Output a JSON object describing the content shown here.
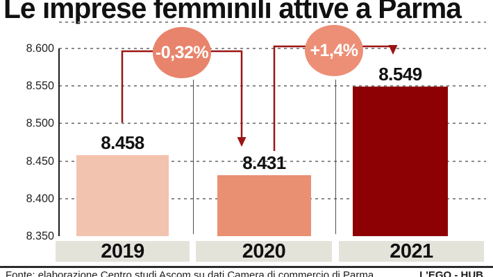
{
  "title": "Le imprese femminili attive a Parma",
  "chart_data": {
    "type": "bar",
    "title": "Le imprese femminili attive a Parma",
    "categories": [
      "2019",
      "2020",
      "2021"
    ],
    "values": [
      8458,
      8431,
      8549
    ],
    "value_labels": [
      "8.458",
      "8.431",
      "8.549"
    ],
    "ylim": [
      8350,
      8600
    ],
    "y_ticks": [
      8600,
      8550,
      8500,
      8450,
      8400,
      8350
    ],
    "y_tick_labels": [
      "8.600",
      "8.550",
      "8.500",
      "8.450",
      "8.400",
      "8.350"
    ],
    "grid": true,
    "legend": "none",
    "bar_colors": [
      "#f2c3ae",
      "#e98f72",
      "#8d0104"
    ],
    "annotations": [
      {
        "label": "-0,32%",
        "from": "2019",
        "to": "2020",
        "color": "#e8846c"
      },
      {
        "label": "+1,4%",
        "from": "2020",
        "to": "2021",
        "color": "#ec8f76"
      }
    ]
  },
  "colors": {
    "arrow": "#9b1414",
    "gridline": "#8a8a8a",
    "axis": "#1a1a1a",
    "year_box_bg": "#e4e3da",
    "title_text": "#111111"
  },
  "footer": {
    "source": "Fonte: elaborazione Centro studi Ascom su dati Camera di commercio di Parma",
    "credit": "L'EGO - HUB"
  }
}
